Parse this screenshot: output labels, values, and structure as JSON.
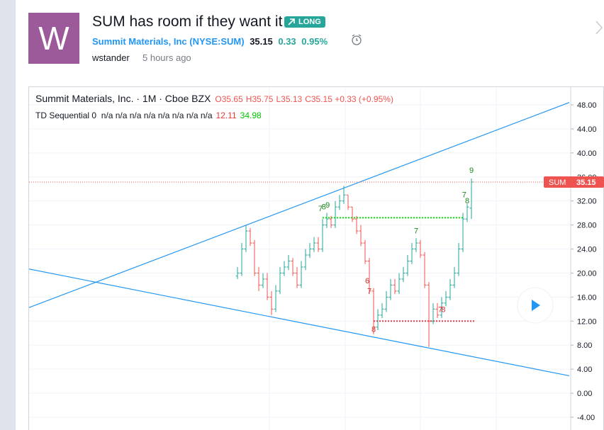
{
  "header": {
    "avatar": "W",
    "title": "SUM has room if they want it",
    "badge": "LONG",
    "company": "Summit Materials, Inc",
    "ticker": "(NYSE:SUM)",
    "price": 35.15,
    "change": 0.33,
    "change_pct": "0.95%",
    "author": "wstander",
    "time": "5 hours ago"
  },
  "chart_data": {
    "type": "ohlc",
    "symbol_line": "Summit Materials, Inc. · 1M · Cboe BZX",
    "ohlc_legend": [
      "O35.65",
      "H35.75",
      "L35.13",
      "C35.15 +0.33 (+0.95%)"
    ],
    "indicator": "TD Sequential 0  n/a n/a n/a n/a n/a n/a n/a n/a",
    "indicator_values": [
      12.11,
      34.98
    ],
    "price_label": "SUM",
    "last_price": 35.15,
    "open": [
      19.5,
      20,
      24,
      27,
      25,
      20,
      18,
      19,
      16,
      14,
      17,
      20,
      21,
      22,
      20,
      18,
      21,
      23,
      24,
      25,
      24,
      28,
      29,
      28,
      31,
      32,
      33,
      31,
      29,
      27,
      25,
      22,
      17,
      11,
      13,
      14,
      16,
      18,
      17,
      19,
      20,
      22,
      24,
      25,
      23,
      18,
      12,
      14,
      13,
      15,
      16,
      18,
      20,
      24,
      29,
      30.8
    ],
    "high": [
      21,
      25,
      28,
      27.5,
      25.5,
      21,
      20,
      20,
      17,
      18,
      21,
      22,
      23,
      22.5,
      21,
      22,
      24,
      25,
      26,
      26,
      29,
      30,
      29.5,
      32,
      33,
      34.5,
      33,
      31,
      29.5,
      28,
      25.5,
      22.5,
      17.5,
      14,
      15,
      17,
      19,
      19,
      20,
      21,
      23,
      25,
      25.8,
      25.5,
      23.5,
      18.5,
      15,
      15,
      16,
      17,
      19,
      21,
      25,
      30,
      31.5,
      35.75
    ],
    "low": [
      19,
      19.5,
      23.5,
      24.5,
      19.5,
      17,
      17.5,
      15.5,
      13,
      13.5,
      16.5,
      19.5,
      20.5,
      19.5,
      17.5,
      17.5,
      20.5,
      22.5,
      23.5,
      23.5,
      23.5,
      27.5,
      27.5,
      27.5,
      30.5,
      31.5,
      30.5,
      28.5,
      26.5,
      24.5,
      21.5,
      16.5,
      9.8,
      10.5,
      12.5,
      13.5,
      15.5,
      16.5,
      16.5,
      18.5,
      19.5,
      21.5,
      23.5,
      22.5,
      17.5,
      7.7,
      11.5,
      12.5,
      12.5,
      14.5,
      15.5,
      17.5,
      19.5,
      23.5,
      28.5,
      29
    ],
    "close": [
      20,
      24,
      27,
      25,
      20,
      18,
      19,
      16,
      14,
      17,
      20,
      21,
      22,
      20,
      18,
      21,
      23,
      24,
      25,
      24,
      28,
      29,
      28,
      31,
      32,
      33,
      31,
      29,
      27,
      25,
      22,
      17,
      11,
      13,
      14,
      16,
      18,
      17,
      19,
      20,
      22,
      24,
      25,
      23,
      18,
      12,
      14,
      13,
      15,
      16,
      18,
      20,
      24,
      29,
      31,
      35.15
    ],
    "up_color": "#26a69a",
    "down_color": "#ef5350",
    "ylim": [
      -6.13,
      51.07
    ],
    "yticks": [
      {
        "value": 48,
        "label": "48.00"
      },
      {
        "value": 44,
        "label": "44.00"
      },
      {
        "value": 40,
        "label": "40.00"
      },
      {
        "value": 36,
        "label": "36.00"
      },
      {
        "value": 32,
        "label": "32.00"
      },
      {
        "value": 28,
        "label": "28.00"
      },
      {
        "value": 24,
        "label": "24.00"
      },
      {
        "value": 20,
        "label": "20.00"
      },
      {
        "value": 16,
        "label": "16.00"
      },
      {
        "value": 12,
        "label": "12.00"
      },
      {
        "value": 8,
        "label": "8.00"
      },
      {
        "value": 4,
        "label": "4.00"
      },
      {
        "value": 0,
        "label": "0.00"
      },
      {
        "value": -4,
        "label": "-4.00"
      }
    ],
    "trendlines": [
      {
        "x": [
          -49.2,
          78
        ],
        "y": [
          14.2,
          48.4
        ],
        "color": "#2196f3"
      },
      {
        "x": [
          -49.2,
          78
        ],
        "y": [
          20.7,
          2.9
        ],
        "color": "#2196f3"
      }
    ],
    "levels": [
      {
        "value": 29.2,
        "x": [
          20,
          53
        ],
        "color": "#00e600"
      },
      {
        "value": 12,
        "x": [
          32,
          56
        ],
        "color": "#f23645"
      }
    ],
    "td_labels": [
      {
        "text": "7",
        "x": 19.5,
        "y": 30.3,
        "color": "#1b8a1b"
      },
      {
        "text": "8",
        "x": 20.3,
        "y": 30.6,
        "color": "#1b8a1b"
      },
      {
        "text": "9",
        "x": 21.2,
        "y": 30.9,
        "color": "#1b8a1b"
      },
      {
        "text": "7",
        "x": 42,
        "y": 26.6,
        "color": "#1b8a1b"
      },
      {
        "text": "7",
        "x": 53.3,
        "y": 32.6,
        "color": "#1b8a1b"
      },
      {
        "text": "8",
        "x": 54,
        "y": 31.6,
        "color": "#1b8a1b"
      },
      {
        "text": "9",
        "x": 55,
        "y": 36.7,
        "color": "#1b8a1b"
      },
      {
        "text": "6",
        "x": 30.5,
        "y": 18.3,
        "color": "#d32f2f"
      },
      {
        "text": "7",
        "x": 31,
        "y": 16.6,
        "color": "#d32f2f"
      },
      {
        "text": "8",
        "x": 32,
        "y": 10.2,
        "color": "#d32f2f"
      },
      {
        "text": "7",
        "x": 47.7,
        "y": 13.5,
        "color": "#d32f2f"
      },
      {
        "text": "8",
        "x": 48.4,
        "y": 13.5,
        "color": "#d32f2f"
      }
    ]
  }
}
